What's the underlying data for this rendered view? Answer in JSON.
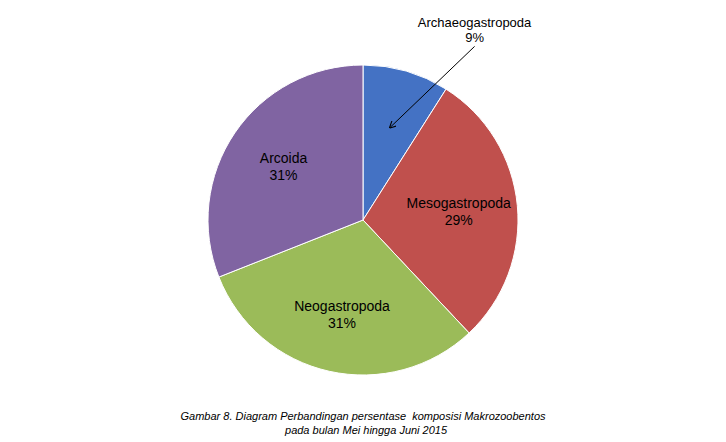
{
  "chart_data": {
    "type": "pie",
    "title": "Gambar 8. Diagram Perbandingan persentase  komposisi Makrozoobentos\n  pada bulan Mei hingga Juni 2015",
    "categories": [
      "Archaeogastropoda",
      "Mesogastropoda",
      "Neogastropoda",
      "Arcoida"
    ],
    "values": [
      9,
      29,
      31,
      31
    ],
    "value_labels": [
      "9%",
      "29%",
      "31%",
      "31%"
    ],
    "colors": [
      "#4472C4",
      "#C0504D",
      "#9BBB59",
      "#8064A2"
    ],
    "data_labels": true
  }
}
